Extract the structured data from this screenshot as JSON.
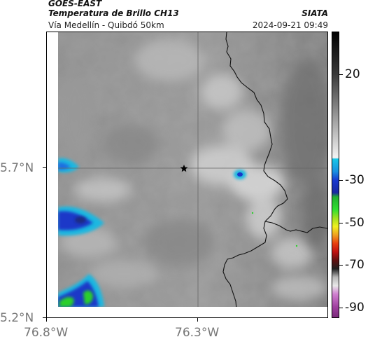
{
  "header": {
    "satellite": "GOES-EAST",
    "product": "Temperatura de Brillo CH13",
    "brand": "SIATA",
    "subtitle": "Vía Medellín - Quibdó 50km",
    "timestamp": "2024-09-21 09:49"
  },
  "map": {
    "lat_labels": [
      "5.7°N",
      "5.2°N"
    ],
    "lon_labels": [
      "76.8°W",
      "76.3°W"
    ],
    "marker": "star",
    "colors": {
      "cold_cloud_cyan": "#1fb7e0",
      "deep_blue": "#1a37c8",
      "green": "#2bd02b",
      "background_gray": "#8a8a8a",
      "border_line": "#111111",
      "gridline": "#666666"
    }
  },
  "colorbar": {
    "labels": [
      "20",
      "-30",
      "-50",
      "-70",
      "-90"
    ],
    "label_values": [
      20,
      -30,
      -50,
      -70,
      -90
    ],
    "range": [
      -95,
      40
    ],
    "unit": ""
  }
}
